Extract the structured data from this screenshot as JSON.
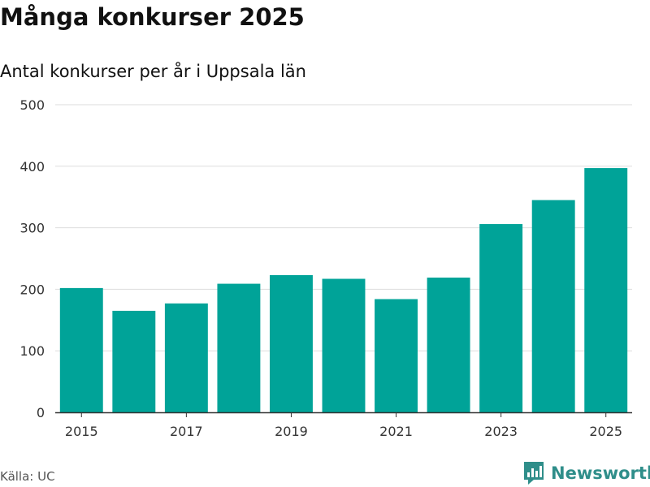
{
  "header": {
    "title": "Många konkurser 2025",
    "subtitle": "Antal konkurser per år i Uppsala län"
  },
  "footer": {
    "source": "Källa: UC",
    "brand": "Newsworthy",
    "brand_icon": "bar-chart-speech-bubble-icon"
  },
  "colors": {
    "bar": "#00a398",
    "grid": "#dddddd",
    "axis": "#333333",
    "brand": "#2f8e8a"
  },
  "chart_data": {
    "type": "bar",
    "title": "Många konkurser 2025",
    "subtitle": "Antal konkurser per år i Uppsala län",
    "categories": [
      "2015",
      "2016",
      "2017",
      "2018",
      "2019",
      "2020",
      "2021",
      "2022",
      "2023",
      "2024",
      "2025"
    ],
    "values": [
      202,
      165,
      177,
      209,
      223,
      217,
      184,
      219,
      306,
      345,
      397
    ],
    "xticks": [
      "2015",
      "2017",
      "2019",
      "2021",
      "2023",
      "2025"
    ],
    "yticks": [
      0,
      100,
      200,
      300,
      400,
      500
    ],
    "ylim": [
      0,
      500
    ],
    "xlabel": "",
    "ylabel": "",
    "grid": true
  }
}
